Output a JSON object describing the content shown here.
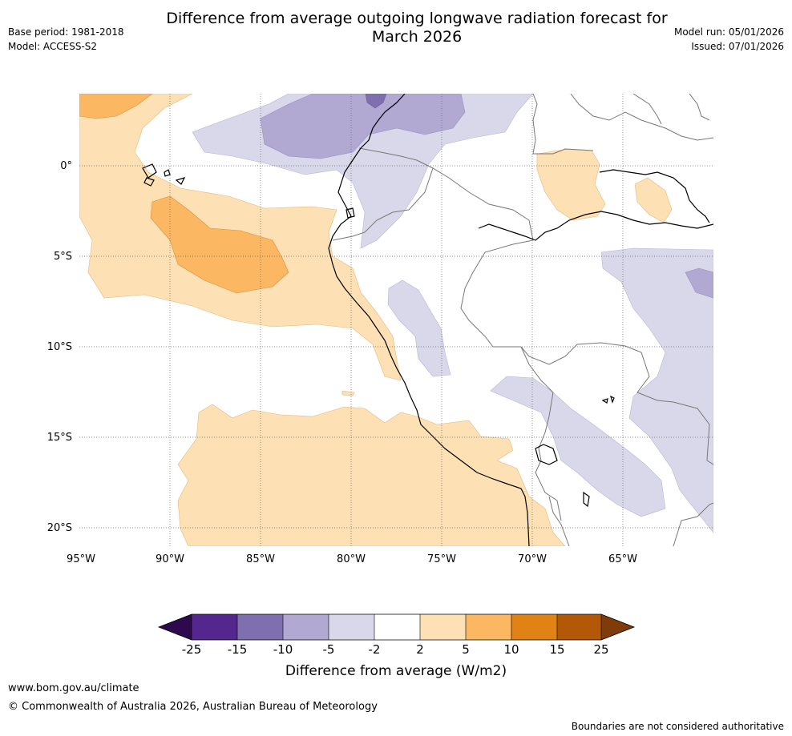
{
  "header": {
    "title_line1": "Difference from average outgoing longwave radiation forecast for",
    "title_line2": "March 2026",
    "base_period": "Base period: 1981-2018",
    "model": "Model: ACCESS-S2",
    "model_run": "Model run: 05/01/2026",
    "issued": "Issued: 07/01/2026"
  },
  "map": {
    "lat_labels": [
      "0°",
      "5°S",
      "10°S",
      "15°S",
      "20°S"
    ],
    "lon_labels": [
      "95°W",
      "90°W",
      "85°W",
      "80°W",
      "75°W",
      "70°W",
      "65°W"
    ]
  },
  "colorbar": {
    "ticks": [
      "-25",
      "-15",
      "-10",
      "-5",
      "-2",
      "2",
      "5",
      "10",
      "15",
      "25"
    ],
    "colors": [
      "#2d0a4e",
      "#54278f",
      "#806fae",
      "#b1a9d2",
      "#d9d8ea",
      "#ffffff",
      "#fde0b4",
      "#fbb761",
      "#e08214",
      "#b35806",
      "#7f3b08"
    ],
    "label": "Difference from average (W/m2)"
  },
  "footer": {
    "url": "www.bom.gov.au/climate",
    "copyright": "© Commonwealth of Australia 2026, Australian Bureau of Meteorology",
    "disclaimer": "Boundaries are not considered authoritative"
  }
}
